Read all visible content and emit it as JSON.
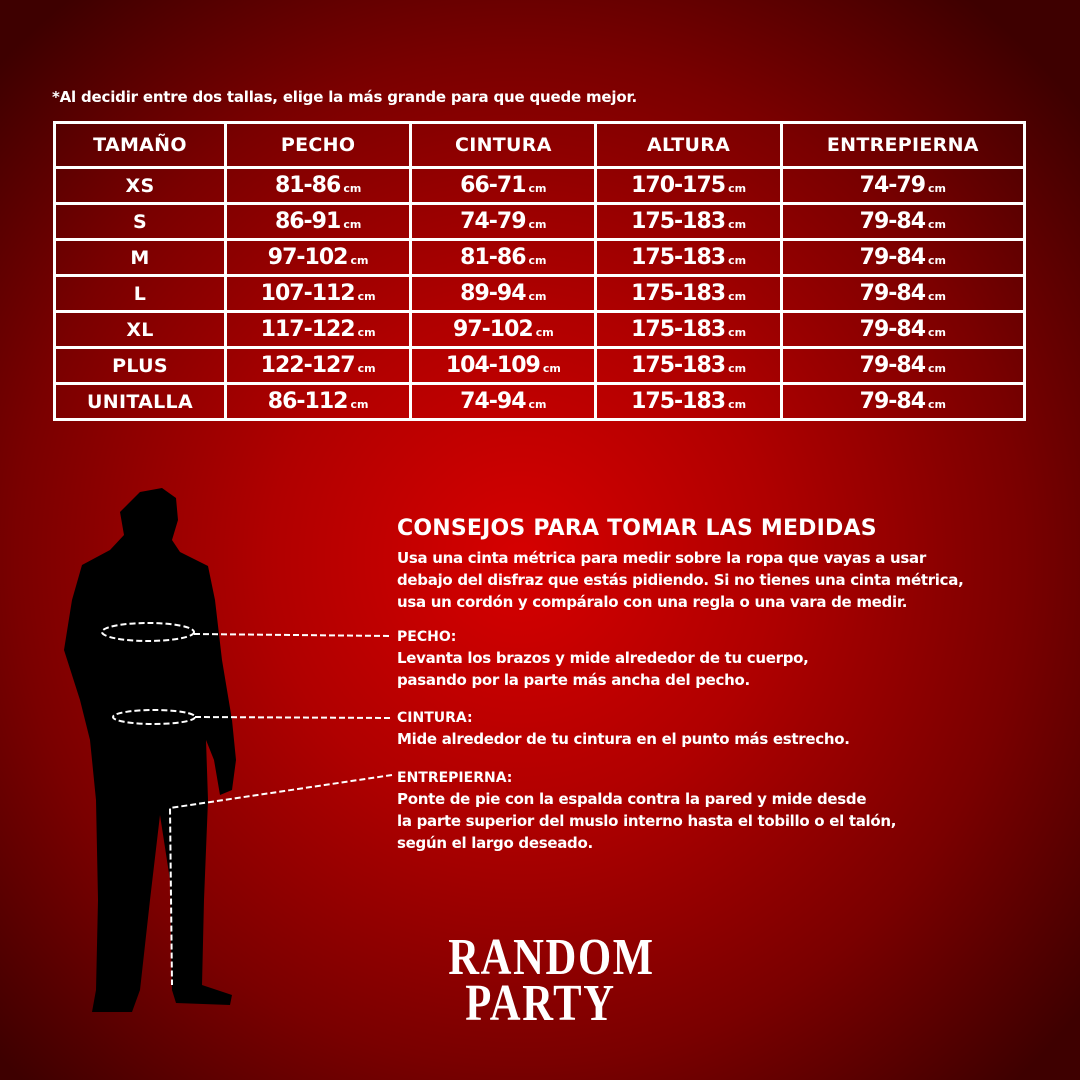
{
  "note": "*Al decidir entre dos tallas, elige la más grande para que quede mejor.",
  "table": {
    "headers": [
      "TAMAÑO",
      "PECHO",
      "CINTURA",
      "ALTURA",
      "ENTREPIERNA"
    ],
    "unit": "cm",
    "rows": [
      [
        "XS",
        "81-86",
        "66-71",
        "170-175",
        "74-79"
      ],
      [
        "S",
        "86-91",
        "74-79",
        "175-183",
        "79-84"
      ],
      [
        "M",
        "97-102",
        "81-86",
        "175-183",
        "79-84"
      ],
      [
        "L",
        "107-112",
        "89-94",
        "175-183",
        "79-84"
      ],
      [
        "XL",
        "117-122",
        "97-102",
        "175-183",
        "79-84"
      ],
      [
        "PLUS",
        "122-127",
        "104-109",
        "175-183",
        "79-84"
      ],
      [
        "UNITALLA",
        "86-112",
        "74-94",
        "175-183",
        "79-84"
      ]
    ]
  },
  "tips": {
    "title": "CONSEJOS PARA TOMAR LAS MEDIDAS",
    "intro": [
      "Usa una cinta métrica para medir sobre la ropa que vayas a usar",
      "debajo del disfraz que estás pidiendo. Si no tienes una cinta métrica,",
      "usa un cordón y compáralo con una regla o una vara de medir."
    ],
    "sections": [
      {
        "title": "PECHO:",
        "lines": [
          "Levanta los brazos y mide alrededor de tu cuerpo,",
          "pasando por la parte más ancha del pecho."
        ]
      },
      {
        "title": "CINTURA:",
        "lines": [
          "Mide alrededor de tu cintura en el punto más estrecho."
        ]
      },
      {
        "title": "ENTREPIERNA:",
        "lines": [
          "Ponte de pie con la espalda contra la pared y mide desde",
          "la parte superior del muslo interno hasta el tobillo o el talón,",
          "según el largo deseado."
        ]
      }
    ]
  },
  "logo": {
    "line1": "RANDOM",
    "line2": "PARTY"
  },
  "colors": {
    "background": "#c00000",
    "text": "#ffffff",
    "silhouette": "#000000"
  }
}
